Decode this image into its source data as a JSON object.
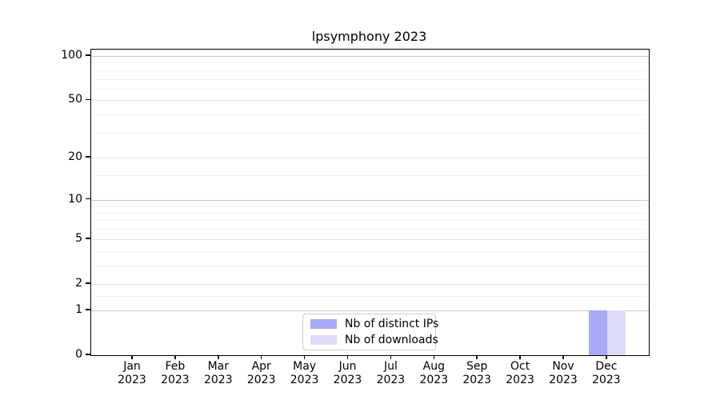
{
  "chart_data": {
    "type": "bar",
    "title": "lpsymphony 2023",
    "categories": [
      "Jan",
      "Feb",
      "Mar",
      "Apr",
      "May",
      "Jun",
      "Jul",
      "Aug",
      "Sep",
      "Oct",
      "Nov",
      "Dec"
    ],
    "x_year": "2023",
    "series": [
      {
        "name": "Nb of distinct IPs",
        "color": "#a8a8f8",
        "values": [
          0,
          0,
          0,
          0,
          0,
          0,
          0,
          0,
          0,
          0,
          0,
          1
        ]
      },
      {
        "name": "Nb of downloads",
        "color": "#dcdcfa",
        "values": [
          0,
          0,
          0,
          0,
          0,
          0,
          0,
          0,
          0,
          0,
          0,
          1
        ]
      }
    ],
    "yscale": "log1p",
    "ylim": [
      0,
      110.4
    ],
    "yticks": [
      0,
      1,
      2,
      5,
      10,
      20,
      50,
      100
    ],
    "yticks_minor": [
      1.5,
      3,
      4,
      6,
      7,
      8,
      9,
      15,
      30,
      40,
      60,
      70,
      80,
      90
    ],
    "grid": true,
    "legend_position": "lower center"
  },
  "colors": {
    "grid_power10": "#c8c8c8",
    "grid_labeled": "#e4e4e4",
    "grid_minor": "#f2f2f2",
    "spine": "#000000",
    "legend_border": "#cccccc",
    "text": "#000000"
  }
}
